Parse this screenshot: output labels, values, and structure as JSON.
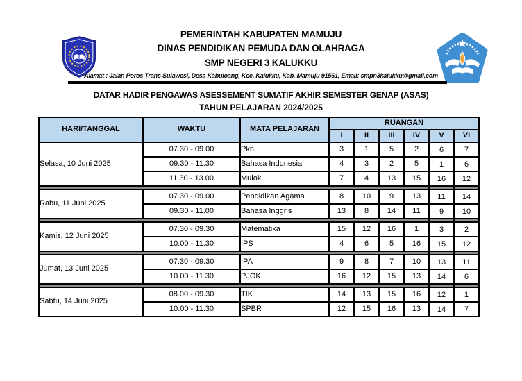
{
  "header": {
    "government": "PEMERINTAH KABUPATEN MAMUJU",
    "department": "DINAS PENDIDIKAN PEMUDA DAN OLAHRAGA",
    "school": "SMP NEGERI 3 KALUKKU",
    "address": "Alamat : Jalan Poros Trans Sulawesi, Desa Kabuloang, Kec. Kalukku, Kab. Mamuju 91561, Email: smpn3kalukku@gmail.com"
  },
  "title": {
    "line1": "DATAR HADIR PENGAWAS ASESSEMENT SUMATIF AKHIR SEMESTER GENAP (ASAS)",
    "line2": "TAHUN PELAJARAN 2024/2025"
  },
  "table": {
    "columns": [
      "HARI/TANGGAL",
      "WAKTU",
      "MATA PELAJARAN"
    ],
    "room_group_label": "RUANGAN",
    "room_columns": [
      "I",
      "II",
      "III",
      "IV",
      "V",
      "VI"
    ],
    "groups": [
      {
        "day": "Selasa, 10 Juni 2025",
        "rows": [
          {
            "time": "07.30 - 09.00",
            "subject": "Pkn",
            "rooms": [
              3,
              1,
              5,
              2,
              6,
              7
            ]
          },
          {
            "time": "09.30 - 11.30",
            "subject": "Bahasa Indonesia",
            "rooms": [
              4,
              3,
              2,
              5,
              1,
              6
            ]
          },
          {
            "time": "11.30 - 13.00",
            "subject": "Mulok",
            "rooms": [
              7,
              4,
              13,
              15,
              16,
              12
            ]
          }
        ]
      },
      {
        "day": "Rabu, 11 Juni 2025",
        "rows": [
          {
            "time": "07.30 - 09.00",
            "subject": "Pendidikan Agama",
            "rooms": [
              8,
              10,
              9,
              13,
              11,
              14
            ]
          },
          {
            "time": "09.30 - 11.00",
            "subject": "Bahasa Inggris",
            "rooms": [
              13,
              8,
              14,
              11,
              9,
              10
            ]
          }
        ]
      },
      {
        "day": "Kamis, 12 Juni 2025",
        "rows": [
          {
            "time": "07.30 - 09.30",
            "subject": "Matematika",
            "rooms": [
              15,
              12,
              16,
              1,
              3,
              2
            ]
          },
          {
            "time": "10.00 - 11.30",
            "subject": "IPS",
            "rooms": [
              4,
              6,
              5,
              16,
              15,
              12
            ]
          }
        ]
      },
      {
        "day": "Jumat, 13 Juni 2025",
        "rows": [
          {
            "time": "07.30 - 09.30",
            "subject": "IPA",
            "rooms": [
              9,
              8,
              7,
              10,
              13,
              11
            ]
          },
          {
            "time": "10.00 - 11.30",
            "subject": "PJOK",
            "rooms": [
              16,
              12,
              15,
              13,
              14,
              6
            ]
          }
        ]
      },
      {
        "day": "Sabtu, 14 Juni 2025",
        "rows": [
          {
            "time": "08.00 - 09.30",
            "subject": "TIK",
            "rooms": [
              14,
              13,
              15,
              16,
              12,
              1
            ]
          },
          {
            "time": "10.00 - 11.30",
            "subject": "SPBR",
            "rooms": [
              12,
              15,
              16,
              13,
              14,
              7
            ]
          }
        ]
      }
    ]
  },
  "colors": {
    "header_fill": "#BDD7EE",
    "separator_fill": "#8C8C8C",
    "border_black": "#000000",
    "school_logo_blue": "#2732B5",
    "school_logo_gold": "#E8C64A",
    "ministry_logo_blue": "#3F8FD2",
    "flame_orange": "#F2A33C"
  }
}
